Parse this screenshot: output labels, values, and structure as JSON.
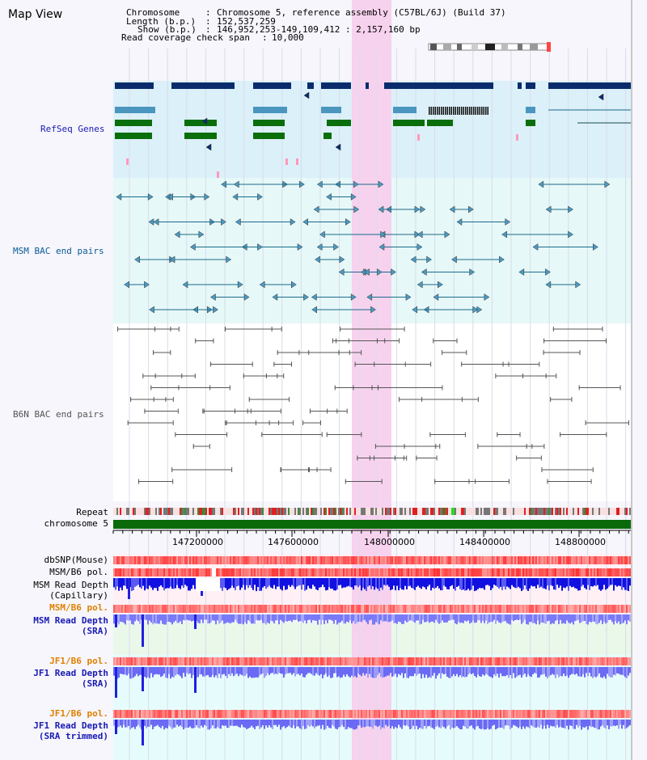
{
  "title": "Map View",
  "info": {
    "chromosome_key": "Chromosome",
    "chromosome_val": "Chromosome 5, reference assembly (C57BL/6J) (Build 37)",
    "length_key": "Length (b.p.)",
    "length_val": "152,537,259",
    "show_key": "Show (b.p.)",
    "show_val": "146,952,253-149,109,412 : 2,157,160 bp",
    "span_key": "Read coverage check span",
    "span_val": "10,000"
  },
  "tracks": {
    "refseq": "RefSeq Genes",
    "msm_bac": "MSM BAC end pairs",
    "b6n_bac": "B6N BAC end pairs",
    "repeat": "Repeat",
    "chromosome": "chromosome 5",
    "dbsnp": "dbSNP(Mouse)",
    "msm_b6_pol_1": "MSM/B6 pol.",
    "msm_depth_cap_1": "MSM Read Depth",
    "msm_depth_cap_2": "(Capillary)",
    "msm_b6_pol_2": "MSM/B6 pol.",
    "msm_depth_sra_1": "MSM Read Depth",
    "msm_depth_sra_2": "(SRA)",
    "jf1_b6_pol_1": "JF1/B6 pol.",
    "jf1_depth_sra_1": "JF1 Read Depth",
    "jf1_depth_sra_2": "(SRA)",
    "jf1_b6_pol_2": "JF1/B6 pol.",
    "jf1_depth_trim_1": "JF1 Read Depth",
    "jf1_depth_trim_2": "(SRA trimmed)"
  },
  "axis": {
    "ticks": [
      "147200000",
      "147600000",
      "148000000",
      "148400000",
      "148800000"
    ]
  },
  "colors": {
    "refseq_label": "#1a1ab4",
    "msm_label": "#0a5a96",
    "b6n_label": "#555555",
    "pol_label": "#e08000",
    "depth_label": "#1a1ab4"
  }
}
